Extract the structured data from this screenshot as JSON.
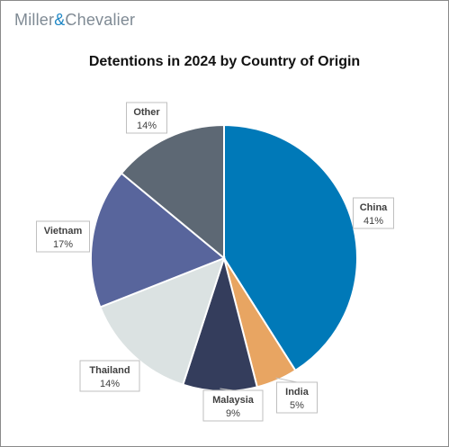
{
  "brand": {
    "name_left": "Miller",
    "amp": "&",
    "name_right": "Chevalier"
  },
  "colors": {
    "China": "#0079b8",
    "India": "#e8a562",
    "Malaysia": "#343d5c",
    "Thailand": "#dbe2e2",
    "Vietnam": "#58659c",
    "Other": "#5d6874",
    "brand_gray": "#7f8a94",
    "brand_blue": "#1f87c5"
  },
  "chart_data": {
    "type": "pie",
    "title": "Detentions in 2024 by Country of Origin",
    "slices": [
      {
        "label": "China",
        "value": 41,
        "display": "41%"
      },
      {
        "label": "India",
        "value": 5,
        "display": "5%"
      },
      {
        "label": "Malaysia",
        "value": 9,
        "display": "9%"
      },
      {
        "label": "Thailand",
        "value": 14,
        "display": "14%"
      },
      {
        "label": "Vietnam",
        "value": 17,
        "display": "17%"
      },
      {
        "label": "Other",
        "value": 14,
        "display": "14%"
      }
    ]
  }
}
